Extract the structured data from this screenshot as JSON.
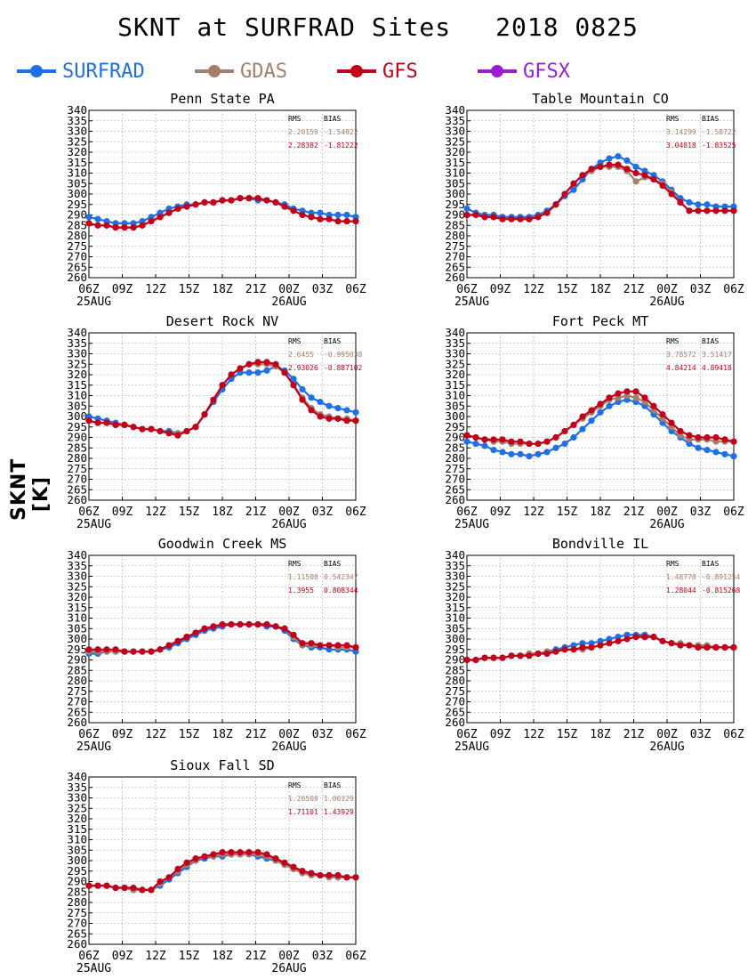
{
  "title": {
    "main": "SKNT at SURFRAD Sites",
    "date": "2018 0825"
  },
  "legend": [
    {
      "name": "SURFRAD",
      "color": "#1f6fe5"
    },
    {
      "name": "GDAS",
      "color": "#a57f6e"
    },
    {
      "name": "GFS",
      "color": "#c2001a"
    },
    {
      "name": "GFSX",
      "color": "#9a1fd1"
    }
  ],
  "ylabel": "SKNT [K]",
  "axes": {
    "yticks": [
      260,
      265,
      270,
      275,
      280,
      285,
      290,
      295,
      300,
      305,
      310,
      315,
      320,
      325,
      330,
      335,
      340
    ],
    "ylim": [
      260,
      340
    ],
    "xticks": [
      "06Z",
      "09Z",
      "12Z",
      "15Z",
      "18Z",
      "21Z",
      "00Z",
      "03Z",
      "06Z"
    ],
    "date_labels": [
      "25AUG",
      "26AUG"
    ],
    "grid": true
  },
  "stats_headers": [
    "RMS",
    "BIAS"
  ],
  "chart_data": [
    {
      "type": "line",
      "title": "Penn State PA",
      "stats": {
        "gdas": [
          "2.20159",
          "-1.54822"
        ],
        "gfs": [
          "2.28382",
          "-1.81222"
        ]
      },
      "series": [
        {
          "name": "SURFRAD",
          "values": [
            289,
            288,
            287,
            286,
            286,
            286,
            287,
            289,
            291,
            293,
            294,
            295,
            295,
            296,
            296,
            297,
            297,
            298,
            298,
            297,
            297,
            296,
            295,
            293,
            292,
            291,
            291,
            290,
            290,
            290,
            289
          ]
        },
        {
          "name": "GDAS",
          "values": [
            286,
            285,
            285,
            284,
            284,
            284,
            285,
            287,
            289,
            291,
            293,
            294,
            295,
            296,
            296,
            297,
            297,
            298,
            298,
            298,
            297,
            296,
            294,
            292,
            290,
            289,
            288,
            288,
            287,
            287,
            287
          ]
        },
        {
          "name": "GFS",
          "values": [
            286,
            285,
            285,
            284,
            284,
            284,
            285,
            287,
            289,
            291,
            293,
            294,
            295,
            296,
            296,
            297,
            297,
            298,
            298,
            298,
            297,
            296,
            294,
            292,
            290,
            289,
            288,
            288,
            287,
            287,
            287
          ]
        }
      ]
    },
    {
      "type": "line",
      "title": "Table Mountain CO",
      "stats": {
        "gdas": [
          "3.14299",
          "-1.58722"
        ],
        "gfs": [
          "3.04818",
          "-1.83525"
        ]
      },
      "series": [
        {
          "name": "SURFRAD",
          "values": [
            293,
            291,
            290,
            290,
            289,
            289,
            289,
            289,
            290,
            292,
            295,
            299,
            302,
            307,
            312,
            315,
            317,
            318,
            316,
            313,
            311,
            309,
            306,
            302,
            298,
            296,
            295,
            295,
            294,
            294,
            294
          ]
        },
        {
          "name": "GDAS",
          "values": [
            290,
            290,
            289,
            289,
            288,
            288,
            288,
            288,
            289,
            291,
            295,
            300,
            305,
            309,
            311,
            313,
            313,
            313,
            311,
            306,
            308,
            307,
            305,
            301,
            296,
            292,
            292,
            292,
            292,
            292,
            292
          ]
        },
        {
          "name": "GFS",
          "values": [
            290,
            290,
            289,
            289,
            288,
            288,
            288,
            288,
            289,
            291,
            295,
            300,
            305,
            309,
            312,
            313,
            314,
            314,
            312,
            310,
            309,
            307,
            304,
            300,
            296,
            292,
            292,
            292,
            292,
            292,
            292
          ]
        }
      ]
    },
    {
      "type": "line",
      "title": "Desert Rock NV",
      "stats": {
        "gdas": [
          "2.6455",
          "-0.995038"
        ],
        "gfs": [
          "2.93026",
          "-0.887102"
        ]
      },
      "series": [
        {
          "name": "SURFRAD",
          "values": [
            300,
            299,
            298,
            297,
            296,
            295,
            294,
            294,
            293,
            293,
            292,
            293,
            295,
            301,
            307,
            313,
            318,
            321,
            321,
            321,
            322,
            324,
            322,
            318,
            313,
            309,
            307,
            305,
            304,
            303,
            302
          ]
        },
        {
          "name": "GDAS",
          "values": [
            298,
            297,
            297,
            296,
            296,
            295,
            294,
            294,
            293,
            292,
            292,
            293,
            295,
            301,
            308,
            315,
            320,
            323,
            325,
            325,
            325,
            324,
            321,
            315,
            309,
            304,
            301,
            300,
            299,
            299,
            298
          ]
        },
        {
          "name": "GFS",
          "values": [
            298,
            297,
            297,
            296,
            296,
            295,
            294,
            294,
            293,
            292,
            291,
            293,
            295,
            301,
            308,
            315,
            320,
            323,
            325,
            326,
            326,
            325,
            321,
            315,
            308,
            303,
            300,
            299,
            299,
            298,
            298
          ]
        }
      ]
    },
    {
      "type": "line",
      "title": "Fort Peck MT",
      "stats": {
        "gdas": [
          "3.78572",
          "3.51417"
        ],
        "gfs": [
          "4.84214",
          "4.89418"
        ]
      },
      "series": [
        {
          "name": "SURFRAD",
          "values": [
            288,
            287,
            286,
            284,
            283,
            282,
            282,
            281,
            282,
            283,
            285,
            287,
            290,
            294,
            298,
            302,
            305,
            307,
            308,
            307,
            305,
            301,
            297,
            293,
            290,
            287,
            285,
            284,
            283,
            282,
            281
          ]
        },
        {
          "name": "GDAS",
          "values": [
            291,
            290,
            289,
            288,
            288,
            287,
            287,
            287,
            287,
            288,
            290,
            293,
            296,
            299,
            302,
            305,
            308,
            309,
            310,
            309,
            307,
            303,
            299,
            295,
            291,
            289,
            289,
            289,
            288,
            288,
            288
          ]
        },
        {
          "name": "GFS",
          "values": [
            291,
            290,
            289,
            289,
            289,
            288,
            288,
            287,
            287,
            288,
            290,
            293,
            296,
            300,
            303,
            306,
            309,
            311,
            312,
            312,
            309,
            305,
            301,
            297,
            293,
            291,
            290,
            290,
            290,
            289,
            288
          ]
        }
      ]
    },
    {
      "type": "line",
      "title": "Goodwin Creek MS",
      "stats": {
        "gdas": [
          "1.11508",
          "0.542347"
        ],
        "gfs": [
          "1.3955",
          "0.808344"
        ]
      },
      "series": [
        {
          "name": "SURFRAD",
          "values": [
            293,
            293,
            294,
            294,
            294,
            294,
            294,
            294,
            295,
            296,
            298,
            300,
            302,
            304,
            305,
            306,
            307,
            307,
            307,
            307,
            306,
            306,
            304,
            300,
            297,
            296,
            296,
            295,
            295,
            295,
            294
          ]
        },
        {
          "name": "GDAS",
          "values": [
            294,
            294,
            294,
            294,
            294,
            294,
            294,
            294,
            295,
            297,
            299,
            301,
            303,
            305,
            306,
            307,
            307,
            307,
            307,
            307,
            307,
            306,
            305,
            301,
            297,
            297,
            297,
            297,
            296,
            296,
            296
          ]
        },
        {
          "name": "GFS",
          "values": [
            295,
            295,
            295,
            295,
            294,
            294,
            294,
            294,
            295,
            297,
            299,
            301,
            303,
            305,
            306,
            307,
            307,
            307,
            307,
            307,
            307,
            306,
            305,
            302,
            298,
            298,
            297,
            297,
            297,
            297,
            296
          ]
        }
      ]
    },
    {
      "type": "line",
      "title": "Bondville IL",
      "stats": {
        "gdas": [
          "1.48778",
          "-0.891254"
        ],
        "gfs": [
          "1.28044",
          "-0.815268"
        ]
      },
      "series": [
        {
          "name": "SURFRAD",
          "values": [
            290,
            290,
            291,
            291,
            291,
            292,
            292,
            293,
            293,
            294,
            295,
            296,
            297,
            298,
            298,
            299,
            300,
            301,
            302,
            302,
            302,
            301,
            299,
            298,
            297,
            297,
            296,
            296,
            296,
            296,
            296
          ]
        },
        {
          "name": "GDAS",
          "values": [
            290,
            290,
            291,
            291,
            291,
            292,
            292,
            293,
            293,
            294,
            294,
            295,
            295,
            295,
            296,
            297,
            298,
            299,
            300,
            301,
            301,
            301,
            299,
            298,
            298,
            297,
            297,
            297,
            296,
            296,
            296
          ]
        },
        {
          "name": "GFS",
          "values": [
            290,
            290,
            291,
            291,
            291,
            292,
            292,
            292,
            293,
            293,
            294,
            295,
            295,
            296,
            296,
            297,
            298,
            299,
            300,
            301,
            301,
            301,
            299,
            298,
            297,
            297,
            296,
            296,
            296,
            296,
            296
          ]
        }
      ]
    },
    {
      "type": "line",
      "title": "Sioux Fall SD",
      "stats": {
        "gdas": [
          "1.20508",
          "1.00329"
        ],
        "gfs": [
          "1.71101",
          "1.43929"
        ]
      },
      "series": [
        {
          "name": "SURFRAD",
          "values": [
            288,
            288,
            288,
            287,
            287,
            286,
            286,
            286,
            288,
            291,
            294,
            297,
            300,
            301,
            302,
            302,
            303,
            303,
            303,
            302,
            301,
            300,
            298,
            296,
            295,
            294,
            293,
            293,
            292,
            292,
            292
          ]
        },
        {
          "name": "GDAS",
          "values": [
            288,
            288,
            288,
            287,
            287,
            286,
            286,
            286,
            289,
            292,
            295,
            298,
            300,
            302,
            302,
            303,
            303,
            303,
            303,
            303,
            302,
            300,
            298,
            296,
            294,
            293,
            293,
            292,
            292,
            292,
            292
          ]
        },
        {
          "name": "GFS",
          "values": [
            288,
            288,
            288,
            287,
            287,
            287,
            286,
            286,
            290,
            292,
            296,
            299,
            301,
            302,
            303,
            304,
            304,
            304,
            304,
            304,
            303,
            301,
            299,
            297,
            295,
            294,
            293,
            293,
            293,
            292,
            292
          ]
        }
      ]
    }
  ]
}
